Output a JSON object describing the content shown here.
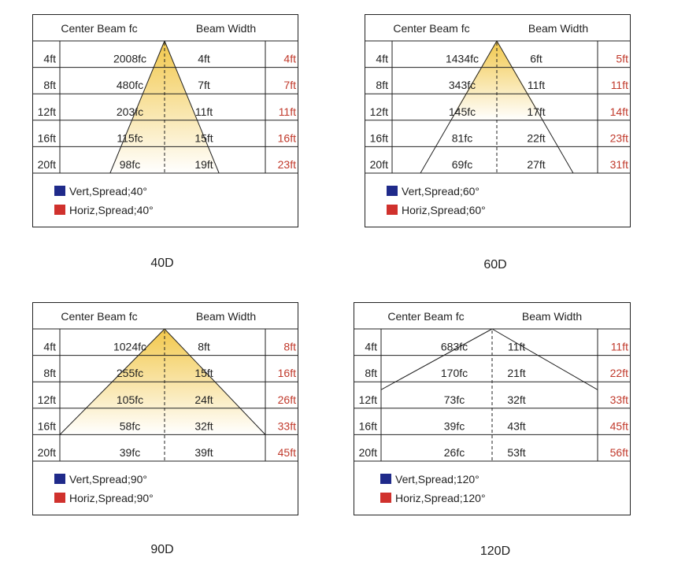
{
  "charts": [
    {
      "caption": "40D",
      "header_center": "Center Beam fc",
      "header_width": "Beam Width",
      "distances": [
        "4ft",
        "8ft",
        "12ft",
        "16ft",
        "20ft"
      ],
      "fc": [
        "2008fc",
        "480fc",
        "203fc",
        "115fc",
        "98fc"
      ],
      "vert_width": [
        "4ft",
        "7ft",
        "11ft",
        "15ft",
        "19ft"
      ],
      "horiz_width": [
        "4ft",
        "7ft",
        "11ft",
        "16ft",
        "23ft"
      ],
      "legend_vert": "Vert,Spread;40°",
      "legend_horiz": "Horiz,Spread;40°"
    },
    {
      "caption": "60D",
      "header_center": "Center Beam fc",
      "header_width": "Beam Width",
      "distances": [
        "4ft",
        "8ft",
        "12ft",
        "16ft",
        "20ft"
      ],
      "fc": [
        "1434fc",
        "343fc",
        "145fc",
        "81fc",
        "69fc"
      ],
      "vert_width": [
        "6ft",
        "11ft",
        "17ft",
        "22ft",
        "27ft"
      ],
      "horiz_width": [
        "5ft",
        "11ft",
        "14ft",
        "23ft",
        "31ft"
      ],
      "legend_vert": "Vert,Spread;60°",
      "legend_horiz": "Horiz,Spread;60°"
    },
    {
      "caption": "90D",
      "header_center": "Center Beam fc",
      "header_width": "Beam Width",
      "distances": [
        "4ft",
        "8ft",
        "12ft",
        "16ft",
        "20ft"
      ],
      "fc": [
        "1024fc",
        "255fc",
        "105fc",
        "58fc",
        "39fc"
      ],
      "vert_width": [
        "8ft",
        "15ft",
        "24ft",
        "32ft",
        "39ft"
      ],
      "horiz_width": [
        "8ft",
        "16ft",
        "26ft",
        "33ft",
        "45ft"
      ],
      "legend_vert": "Vert,Spread;90°",
      "legend_horiz": "Horiz,Spread;90°"
    },
    {
      "caption": "120D",
      "header_center": "Center Beam fc",
      "header_width": "Beam Width",
      "distances": [
        "4ft",
        "8ft",
        "12ft",
        "16ft",
        "20ft"
      ],
      "fc": [
        "683fc",
        "170fc",
        "73fc",
        "39fc",
        "26fc"
      ],
      "vert_width": [
        "11ft",
        "21ft",
        "32ft",
        "43ft",
        "53ft"
      ],
      "horiz_width": [
        "11ft",
        "22ft",
        "33ft",
        "45ft",
        "56ft"
      ],
      "legend_vert": "Vert,Spread;120°",
      "legend_horiz": "Horiz,Spread;120°"
    }
  ],
  "colors": {
    "vert": "#1f2a8a",
    "horiz": "#d0312d",
    "beam": "#f2c84b",
    "horiz_text": "#c0392b"
  },
  "chart_data": [
    {
      "type": "table",
      "beam_angle_deg": 40,
      "distance_ft": [
        4,
        8,
        12,
        16,
        20
      ],
      "center_beam_fc": [
        2008,
        480,
        203,
        115,
        98
      ],
      "vert_beam_width_ft": [
        4,
        7,
        11,
        15,
        19
      ],
      "horiz_beam_width_ft": [
        4,
        7,
        11,
        16,
        23
      ]
    },
    {
      "type": "table",
      "beam_angle_deg": 60,
      "distance_ft": [
        4,
        8,
        12,
        16,
        20
      ],
      "center_beam_fc": [
        1434,
        343,
        145,
        81,
        69
      ],
      "vert_beam_width_ft": [
        6,
        11,
        17,
        22,
        27
      ],
      "horiz_beam_width_ft": [
        5,
        11,
        14,
        23,
        31
      ]
    },
    {
      "type": "table",
      "beam_angle_deg": 90,
      "distance_ft": [
        4,
        8,
        12,
        16,
        20
      ],
      "center_beam_fc": [
        1024,
        255,
        105,
        58,
        39
      ],
      "vert_beam_width_ft": [
        8,
        15,
        24,
        32,
        39
      ],
      "horiz_beam_width_ft": [
        8,
        16,
        26,
        33,
        45
      ]
    },
    {
      "type": "table",
      "beam_angle_deg": 120,
      "distance_ft": [
        4,
        8,
        12,
        16,
        20
      ],
      "center_beam_fc": [
        683,
        170,
        73,
        39,
        26
      ],
      "vert_beam_width_ft": [
        11,
        21,
        32,
        43,
        53
      ],
      "horiz_beam_width_ft": [
        11,
        22,
        33,
        45,
        56
      ]
    }
  ]
}
